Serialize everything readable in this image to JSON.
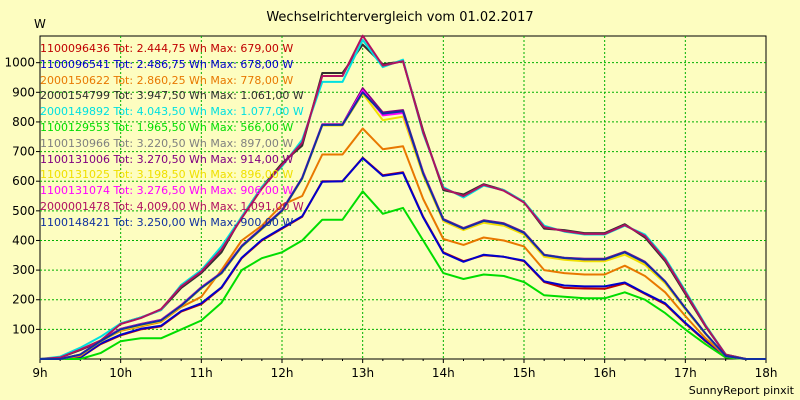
{
  "title": "Wechselrichtervergleich vom 01.02.2017",
  "y_unit": "W",
  "footer": "SunnyReport pinxit",
  "chart_data": {
    "type": "line",
    "title": "Wechselrichtervergleich vom 01.02.2017",
    "ylabel": "W",
    "xlabel": "",
    "x_tick_labels": [
      "9h",
      "10h",
      "11h",
      "12h",
      "13h",
      "14h",
      "15h",
      "16h",
      "17h",
      "18h"
    ],
    "y_tick_labels": [
      "100",
      "200",
      "300",
      "400",
      "500",
      "600",
      "700",
      "800",
      "900",
      "1000"
    ],
    "xlim": [
      9,
      18
    ],
    "ylim": [
      0,
      1090
    ],
    "grid": true,
    "x": [
      9.0,
      9.25,
      9.5,
      9.75,
      10.0,
      10.25,
      10.5,
      10.75,
      11.0,
      11.25,
      11.5,
      11.75,
      12.0,
      12.25,
      12.5,
      12.75,
      13.0,
      13.25,
      13.5,
      13.75,
      14.0,
      14.25,
      14.5,
      14.75,
      15.0,
      15.25,
      15.5,
      15.75,
      16.0,
      16.25,
      16.5,
      16.75,
      17.0,
      17.25,
      17.5,
      17.75,
      18.0
    ],
    "series": [
      {
        "name": "1100096436 Tot: 2.444,75 Wh Max: 679,00 W",
        "color": "#c00000",
        "values": [
          0,
          0,
          5,
          50,
          80,
          100,
          110,
          160,
          185,
          240,
          340,
          400,
          440,
          480,
          600,
          600,
          679,
          620,
          630,
          480,
          360,
          330,
          350,
          345,
          330,
          260,
          240,
          238,
          237,
          255,
          220,
          185,
          120,
          60,
          10,
          0,
          0
        ]
      },
      {
        "name": "1100096541 Tot: 2.486,75 Wh Max: 678,00 W",
        "color": "#0000cc",
        "values": [
          0,
          0,
          5,
          52,
          82,
          102,
          112,
          162,
          188,
          242,
          342,
          402,
          442,
          482,
          598,
          600,
          678,
          618,
          628,
          478,
          358,
          328,
          352,
          345,
          332,
          262,
          248,
          245,
          245,
          258,
          222,
          188,
          122,
          62,
          10,
          0,
          0
        ]
      },
      {
        "name": "2000150622 Tot: 2.860,25 Wh Max: 778,00 W",
        "color": "#e87800",
        "values": [
          0,
          0,
          10,
          60,
          95,
          110,
          125,
          175,
          210,
          300,
          400,
          450,
          520,
          550,
          690,
          690,
          778,
          708,
          718,
          540,
          405,
          385,
          410,
          400,
          380,
          300,
          290,
          285,
          285,
          315,
          280,
          225,
          145,
          70,
          10,
          0,
          0
        ]
      },
      {
        "name": "2000154799 Tot: 3.947,50 Wh Max: 1.061,00 W",
        "color": "#303030",
        "values": [
          0,
          5,
          30,
          60,
          120,
          140,
          165,
          240,
          290,
          360,
          480,
          580,
          660,
          720,
          965,
          965,
          1061,
          995,
          1005,
          770,
          570,
          555,
          590,
          570,
          530,
          440,
          435,
          425,
          425,
          455,
          410,
          330,
          220,
          110,
          15,
          0,
          0
        ]
      },
      {
        "name": "2000149892 Tot: 4.043,50 Wh Max: 1.077,00 W",
        "color": "#00e0e0",
        "values": [
          0,
          8,
          38,
          75,
          120,
          140,
          165,
          250,
          300,
          380,
          480,
          580,
          650,
          740,
          935,
          935,
          1077,
          985,
          1010,
          760,
          580,
          545,
          585,
          570,
          530,
          450,
          430,
          420,
          420,
          450,
          420,
          340,
          230,
          115,
          15,
          0,
          0
        ]
      },
      {
        "name": "1100129553 Tot: 1.965,50 Wh Max: 566,00 W",
        "color": "#00dd00",
        "values": [
          0,
          0,
          0,
          20,
          60,
          70,
          70,
          100,
          130,
          190,
          300,
          340,
          360,
          400,
          470,
          470,
          566,
          490,
          510,
          400,
          290,
          270,
          285,
          280,
          260,
          215,
          210,
          205,
          205,
          225,
          200,
          155,
          100,
          50,
          5,
          0,
          0
        ]
      },
      {
        "name": "1100130966 Tot: 3.220,50 Wh Max: 897,00 W",
        "color": "#808080",
        "values": [
          0,
          0,
          15,
          60,
          100,
          115,
          130,
          180,
          240,
          290,
          380,
          440,
          500,
          610,
          790,
          790,
          897,
          830,
          835,
          625,
          470,
          440,
          465,
          455,
          425,
          350,
          340,
          335,
          335,
          360,
          325,
          260,
          170,
          85,
          10,
          0,
          0
        ]
      },
      {
        "name": "1100131006 Tot: 3.270,50 Wh Max: 914,00 W",
        "color": "#800080",
        "values": [
          0,
          0,
          15,
          62,
          102,
          118,
          132,
          182,
          242,
          292,
          382,
          442,
          502,
          612,
          792,
          792,
          914,
          832,
          840,
          630,
          472,
          442,
          468,
          458,
          428,
          352,
          342,
          338,
          338,
          362,
          328,
          262,
          172,
          86,
          10,
          0,
          0
        ]
      },
      {
        "name": "1100131025 Tot: 3.198,50 Wh Max: 896,00 W",
        "color": "#f0e000",
        "values": [
          0,
          0,
          14,
          58,
          98,
          113,
          128,
          178,
          238,
          288,
          378,
          438,
          498,
          608,
          788,
          788,
          896,
          806,
          818,
          620,
          465,
          435,
          460,
          450,
          420,
          345,
          335,
          330,
          330,
          352,
          318,
          255,
          168,
          84,
          10,
          0,
          0
        ]
      },
      {
        "name": "1100131074 Tot: 3.276,50 Wh Max: 906,00 W",
        "color": "#ff00ff",
        "values": [
          0,
          0,
          15,
          61,
          101,
          117,
          131,
          181,
          241,
          291,
          381,
          441,
          501,
          611,
          791,
          791,
          906,
          822,
          830,
          628,
          470,
          440,
          466,
          456,
          426,
          351,
          341,
          336,
          336,
          360,
          326,
          261,
          171,
          86,
          10,
          0,
          0
        ]
      },
      {
        "name": "2000001478 Tot: 4.009,00 Wh Max: 1.091,00 W",
        "color": "#b01060",
        "values": [
          0,
          5,
          32,
          62,
          118,
          138,
          168,
          245,
          295,
          370,
          475,
          575,
          655,
          730,
          955,
          955,
          1091,
          990,
          1005,
          765,
          575,
          550,
          588,
          568,
          528,
          445,
          432,
          422,
          422,
          452,
          415,
          335,
          225,
          112,
          15,
          0,
          0
        ]
      },
      {
        "name": "1100148421 Tot: 3.250,00 Wh Max: 900,00 W",
        "color": "#1030a0",
        "values": [
          0,
          0,
          15,
          60,
          100,
          116,
          130,
          180,
          240,
          290,
          380,
          440,
          500,
          610,
          790,
          790,
          900,
          828,
          836,
          626,
          470,
          440,
          466,
          456,
          426,
          351,
          341,
          336,
          336,
          360,
          326,
          261,
          171,
          86,
          10,
          0,
          0
        ]
      }
    ]
  }
}
